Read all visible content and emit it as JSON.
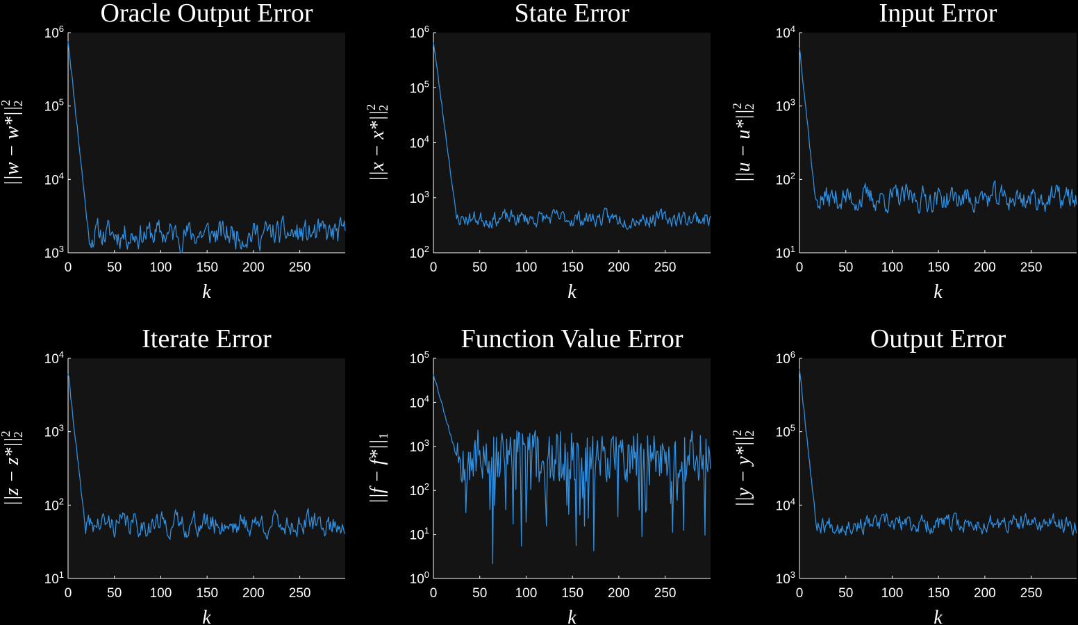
{
  "chart_data": [
    {
      "type": "line",
      "title": "Oracle Output Error",
      "xlabel": "k",
      "ylabel": "||w − w*||",
      "ylabel_sup": "2",
      "ylabel_sub": "2",
      "yscale": "log",
      "xlim": [
        0,
        299
      ],
      "ylim": [
        1000,
        1000000
      ],
      "xticks": [
        0,
        50,
        100,
        150,
        200,
        250
      ],
      "yticks": [
        {
          "base": "10",
          "exp": "3",
          "value": 1000
        },
        {
          "base": "10",
          "exp": "4",
          "value": 10000
        },
        {
          "base": "10",
          "exp": "5",
          "value": 100000
        },
        {
          "base": "10",
          "exp": "6",
          "value": 1000000
        }
      ],
      "color": "#2f8fe0",
      "grid": false,
      "series_shape": {
        "start": 800000,
        "steady": 1800,
        "transient_until": 22,
        "noise_decades": 0.15,
        "n": 300,
        "seed": 11
      }
    },
    {
      "type": "line",
      "title": "State Error",
      "xlabel": "k",
      "ylabel": "||x − x*||",
      "ylabel_sup": "2",
      "ylabel_sub": "2",
      "yscale": "log",
      "xlim": [
        0,
        299
      ],
      "ylim": [
        100,
        1000000
      ],
      "xticks": [
        0,
        50,
        100,
        150,
        200,
        250
      ],
      "yticks": [
        {
          "base": "10",
          "exp": "2",
          "value": 100
        },
        {
          "base": "10",
          "exp": "3",
          "value": 1000
        },
        {
          "base": "10",
          "exp": "4",
          "value": 10000
        },
        {
          "base": "10",
          "exp": "5",
          "value": 100000
        },
        {
          "base": "10",
          "exp": "6",
          "value": 1000000
        }
      ],
      "color": "#2f8fe0",
      "grid": false,
      "series_shape": {
        "start": 700000,
        "steady": 420,
        "transient_until": 25,
        "noise_decades": 0.12,
        "n": 300,
        "seed": 23
      }
    },
    {
      "type": "line",
      "title": "Input Error",
      "xlabel": "k",
      "ylabel": "||u − u*||",
      "ylabel_sup": "2",
      "ylabel_sub": "2",
      "yscale": "log",
      "xlim": [
        0,
        299
      ],
      "ylim": [
        10,
        10000
      ],
      "xticks": [
        0,
        50,
        100,
        150,
        200,
        250
      ],
      "yticks": [
        {
          "base": "10",
          "exp": "1",
          "value": 10
        },
        {
          "base": "10",
          "exp": "2",
          "value": 100
        },
        {
          "base": "10",
          "exp": "3",
          "value": 1000
        },
        {
          "base": "10",
          "exp": "4",
          "value": 10000
        }
      ],
      "color": "#2f8fe0",
      "grid": false,
      "series_shape": {
        "start": 6500,
        "steady": 55,
        "transient_until": 17,
        "noise_decades": 0.14,
        "n": 300,
        "seed": 37
      }
    },
    {
      "type": "line",
      "title": "Iterate Error",
      "xlabel": "k",
      "ylabel": "||z − z*||",
      "ylabel_sup": "2",
      "ylabel_sub": "2",
      "yscale": "log",
      "xlim": [
        0,
        299
      ],
      "ylim": [
        10,
        10000
      ],
      "xticks": [
        0,
        50,
        100,
        150,
        200,
        250
      ],
      "yticks": [
        {
          "base": "10",
          "exp": "1",
          "value": 10
        },
        {
          "base": "10",
          "exp": "2",
          "value": 100
        },
        {
          "base": "10",
          "exp": "3",
          "value": 1000
        },
        {
          "base": "10",
          "exp": "4",
          "value": 10000
        }
      ],
      "color": "#2f8fe0",
      "grid": false,
      "series_shape": {
        "start": 6500,
        "steady": 55,
        "transient_until": 18,
        "noise_decades": 0.13,
        "n": 300,
        "seed": 41
      }
    },
    {
      "type": "line",
      "title": "Function Value Error",
      "xlabel": "k",
      "ylabel": "||f − f*||",
      "ylabel_sup": "",
      "ylabel_sub": "1",
      "yscale": "log",
      "xlim": [
        0,
        299
      ],
      "ylim": [
        1,
        100000
      ],
      "xticks": [
        0,
        50,
        100,
        150,
        200,
        250
      ],
      "yticks": [
        {
          "base": "10",
          "exp": "0",
          "value": 1
        },
        {
          "base": "10",
          "exp": "1",
          "value": 10
        },
        {
          "base": "10",
          "exp": "2",
          "value": 100
        },
        {
          "base": "10",
          "exp": "3",
          "value": 1000
        },
        {
          "base": "10",
          "exp": "4",
          "value": 10000
        },
        {
          "base": "10",
          "exp": "5",
          "value": 100000
        }
      ],
      "color": "#2f8fe0",
      "grid": false,
      "series_shape": {
        "start": 45000,
        "steady": 600,
        "transient_until": 25,
        "noise_decades": 0.5,
        "n": 300,
        "seed": 53,
        "spiky": true
      }
    },
    {
      "type": "line",
      "title": "Output Error",
      "xlabel": "k",
      "ylabel": "||y − y*||",
      "ylabel_sup": "2",
      "ylabel_sub": "2",
      "yscale": "log",
      "xlim": [
        0,
        299
      ],
      "ylim": [
        1000,
        1000000
      ],
      "xticks": [
        0,
        50,
        100,
        150,
        200,
        250
      ],
      "yticks": [
        {
          "base": "10",
          "exp": "3",
          "value": 1000
        },
        {
          "base": "10",
          "exp": "4",
          "value": 10000
        },
        {
          "base": "10",
          "exp": "5",
          "value": 100000
        },
        {
          "base": "10",
          "exp": "6",
          "value": 1000000
        }
      ],
      "color": "#2f8fe0",
      "grid": false,
      "series_shape": {
        "start": 750000,
        "steady": 5500,
        "transient_until": 18,
        "noise_decades": 0.1,
        "n": 300,
        "seed": 67
      }
    }
  ]
}
